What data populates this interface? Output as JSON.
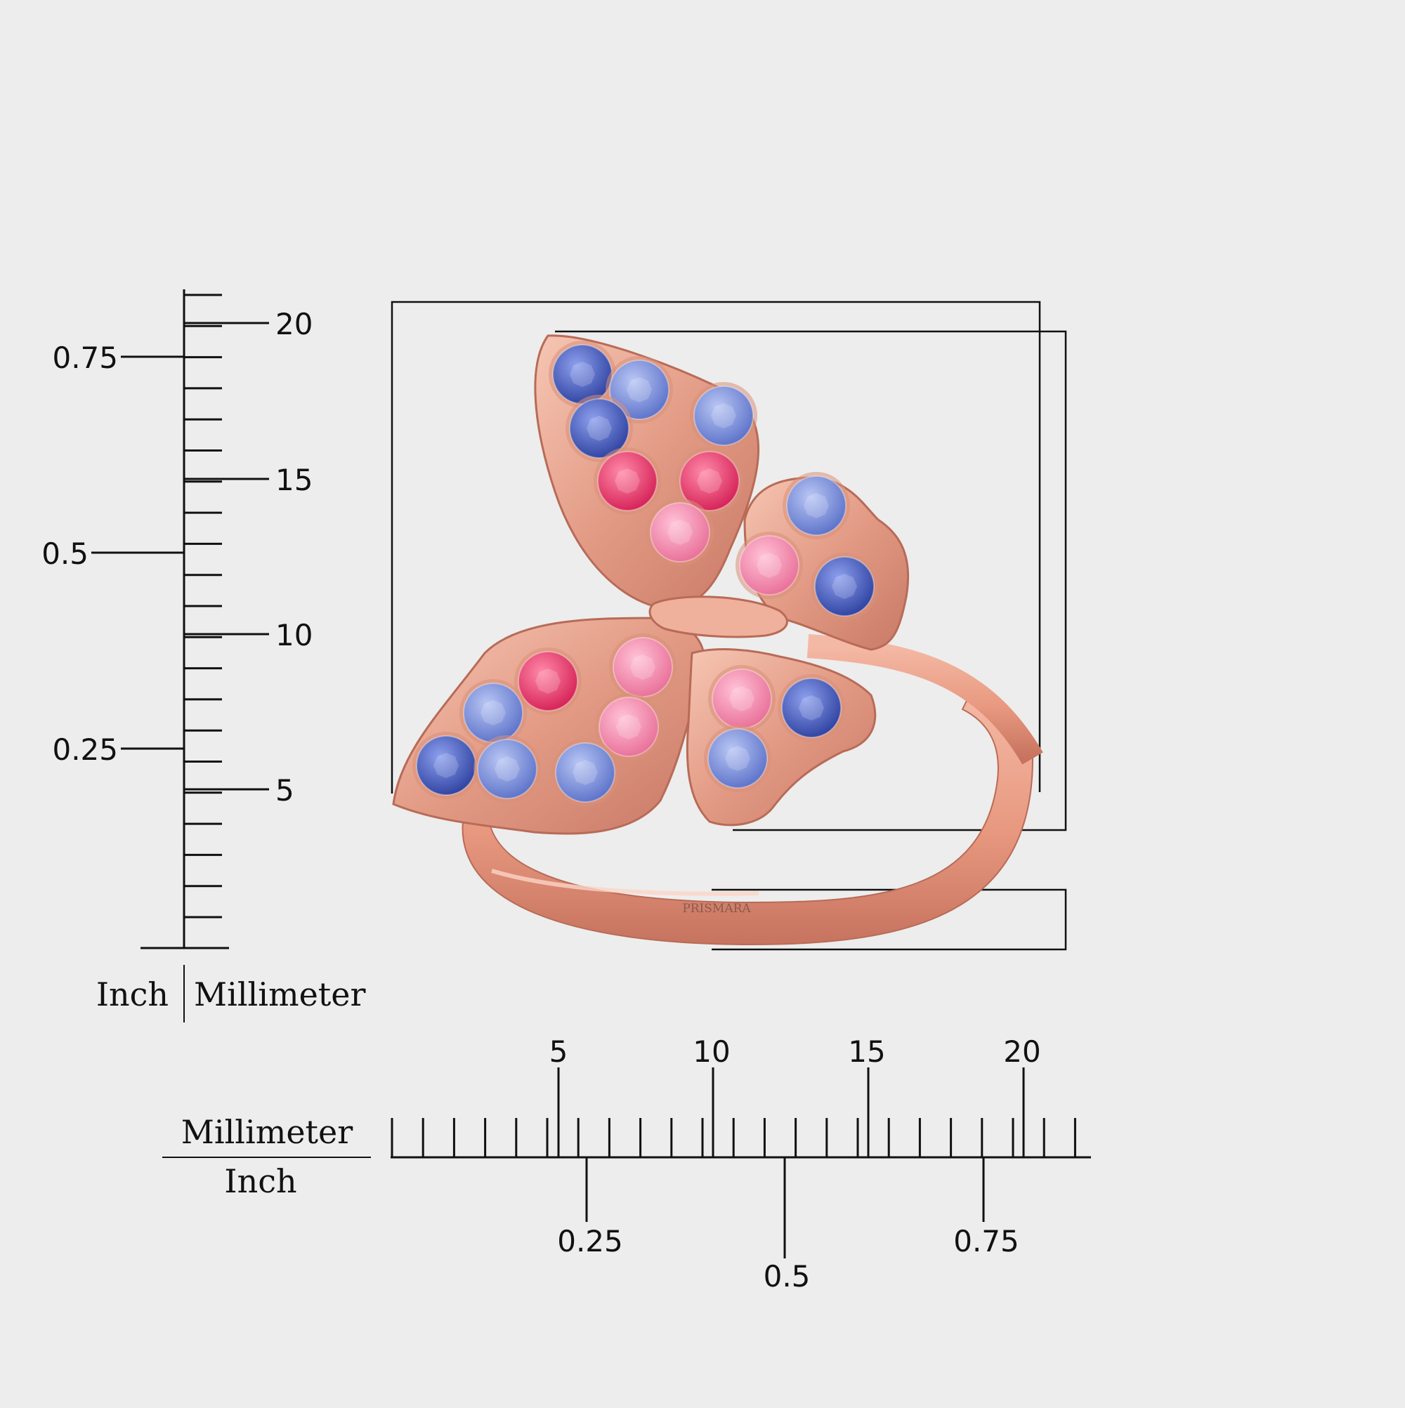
{
  "vertical_ruler": {
    "mm_labels": [
      "20",
      "15",
      "10",
      "5"
    ],
    "inch_labels": [
      "0.75",
      "0.5",
      "0.25"
    ],
    "unit_left": "Inch",
    "unit_right": "Millimeter"
  },
  "horizontal_ruler": {
    "mm_labels": [
      "5",
      "10",
      "15",
      "20"
    ],
    "inch_labels": [
      "0.25",
      "0.5",
      "0.75"
    ],
    "unit_top": "Millimeter",
    "unit_bottom": "Inch"
  },
  "product": {
    "engraving": "PRISMARA",
    "metal_color": "#e8a48e",
    "stone_colors": {
      "blue_dark": "#3f56b8",
      "blue_light": "#7f95dd",
      "pink_hot": "#e8386f",
      "pink_light": "#f290b4"
    }
  }
}
